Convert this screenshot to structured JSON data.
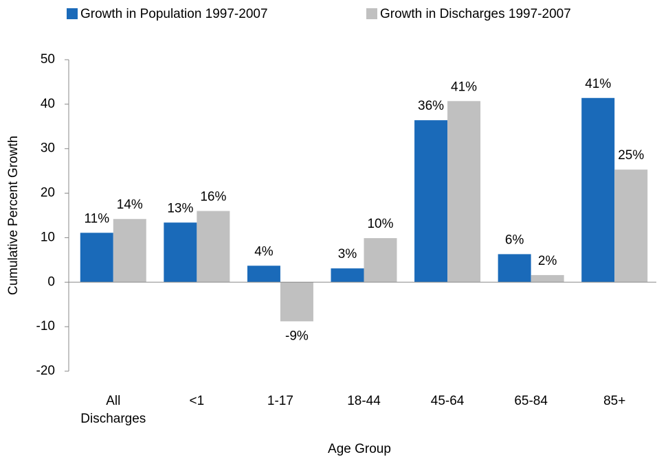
{
  "chart_data": {
    "type": "bar",
    "categories": [
      "All Discharges",
      "<1",
      "1-17",
      "18-44",
      "45-64",
      "65-84",
      "85+"
    ],
    "series": [
      {
        "name": "Growth in Population 1997-2007",
        "color": "#1a6ab9",
        "values": [
          11.1,
          13.4,
          3.7,
          3.1,
          36.4,
          6.3,
          41.4
        ],
        "value_labels": [
          "11%",
          "13%",
          "4%",
          "3%",
          "36%",
          "6%",
          "41%"
        ]
      },
      {
        "name": "Growth in Discharges 1997-2007",
        "color": "#c0c0c0",
        "values": [
          14.2,
          16.0,
          -8.8,
          9.9,
          40.7,
          1.6,
          25.3
        ],
        "value_labels": [
          "14%",
          "16%",
          "-9%",
          "10%",
          "41%",
          "2%",
          "25%"
        ]
      }
    ],
    "xlabel": "Age Group",
    "ylabel": "Cumulative Percent Growth",
    "ylim": [
      -20,
      50
    ],
    "yticks": [
      -20,
      -10,
      0,
      10,
      20,
      30,
      40,
      50
    ],
    "grid": false,
    "legend": "top"
  }
}
